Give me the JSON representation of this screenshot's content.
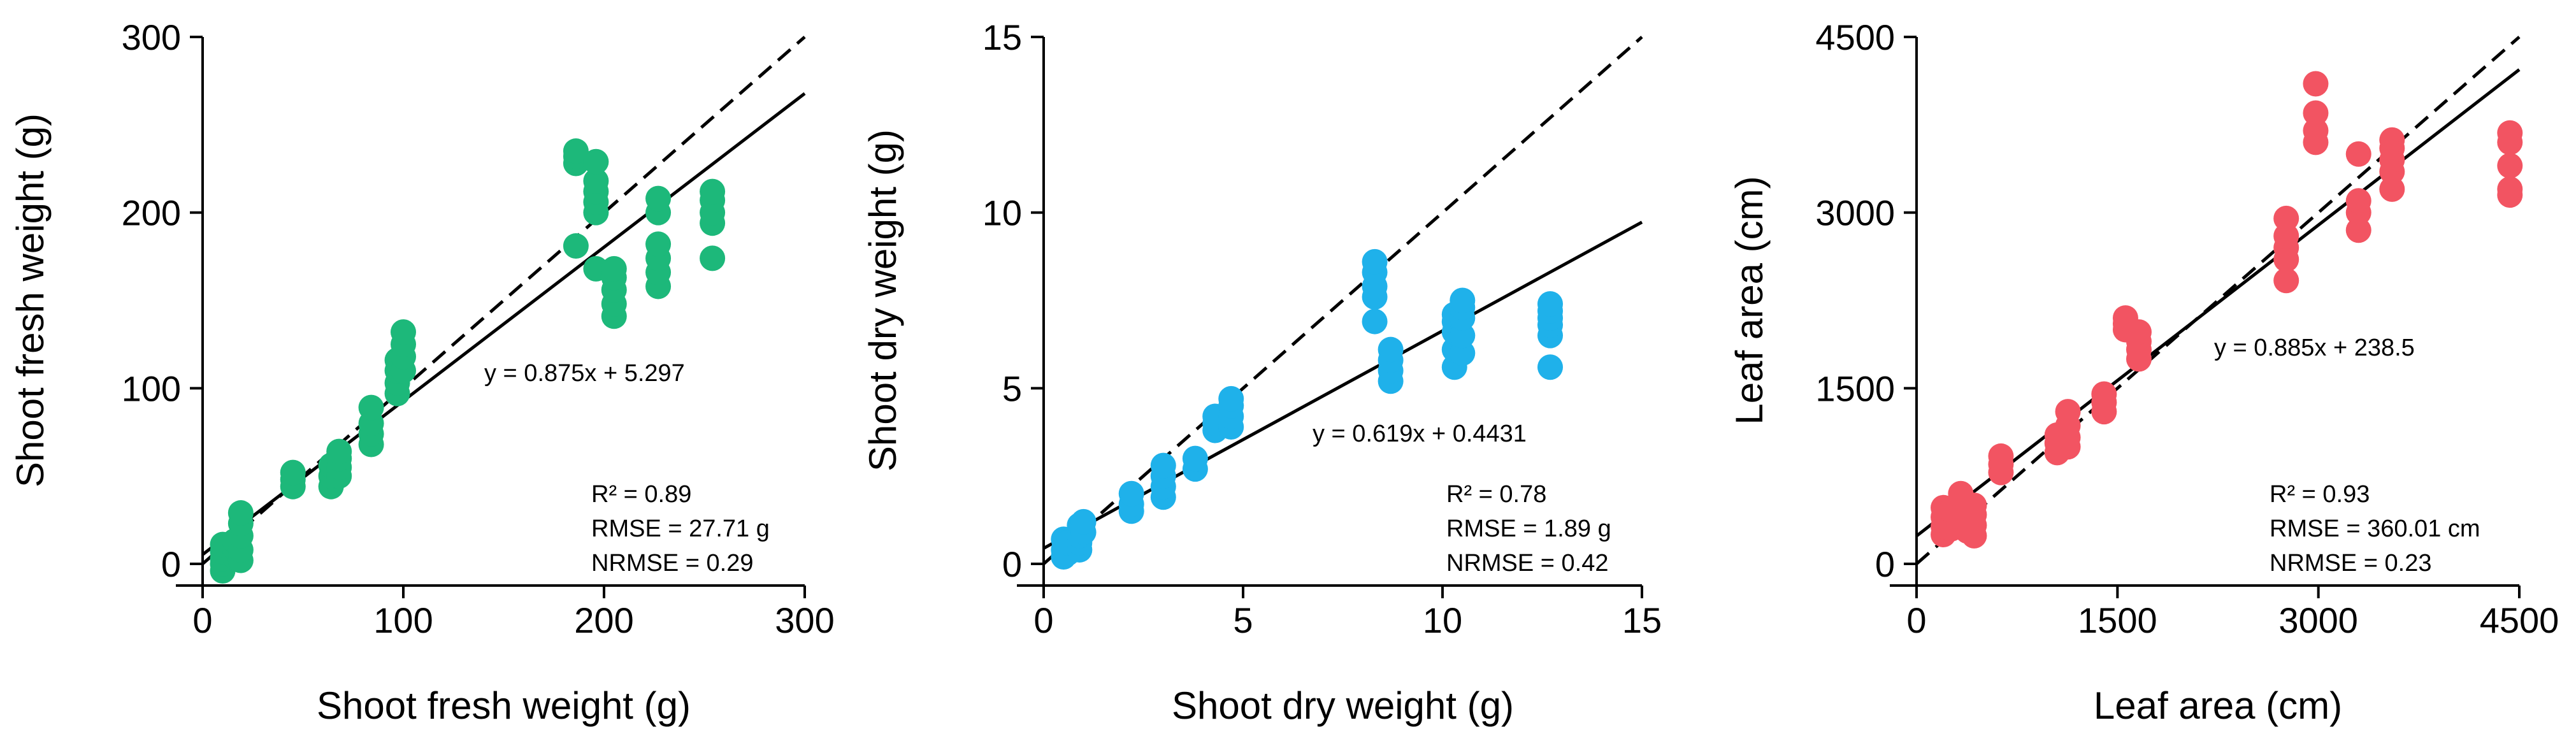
{
  "chart_data": [
    {
      "type": "scatter",
      "color": "#1db87a",
      "xlabel": "Shoot fresh weight (g)",
      "ylabel": "Shoot fresh weight (g)",
      "xlim": [
        0,
        300
      ],
      "ylim": [
        0,
        300
      ],
      "xticks": [
        0,
        100,
        200,
        300
      ],
      "yticks": [
        0,
        100,
        200,
        300
      ],
      "equation": "y = 0.875x + 5.297",
      "fit": {
        "slope": 0.875,
        "intercept": 5.297
      },
      "one_to_one": true,
      "stats": [
        "R² = 0.89",
        "RMSE = 27.71 g",
        "NRMSE = 0.29"
      ],
      "points": [
        [
          10,
          -4
        ],
        [
          10,
          0
        ],
        [
          10,
          3
        ],
        [
          10,
          7
        ],
        [
          10,
          11
        ],
        [
          16,
          4
        ],
        [
          16,
          9
        ],
        [
          16,
          13
        ],
        [
          19,
          2
        ],
        [
          19,
          8
        ],
        [
          19,
          16
        ],
        [
          19,
          23
        ],
        [
          19,
          29
        ],
        [
          45,
          44
        ],
        [
          45,
          48
        ],
        [
          45,
          52
        ],
        [
          64,
          44
        ],
        [
          64,
          50
        ],
        [
          64,
          56
        ],
        [
          68,
          50
        ],
        [
          68,
          55
        ],
        [
          68,
          60
        ],
        [
          68,
          64
        ],
        [
          84,
          68
        ],
        [
          84,
          74
        ],
        [
          84,
          80
        ],
        [
          84,
          89
        ],
        [
          97,
          97
        ],
        [
          97,
          103
        ],
        [
          97,
          110
        ],
        [
          97,
          116
        ],
        [
          100,
          110
        ],
        [
          100,
          118
        ],
        [
          100,
          125
        ],
        [
          100,
          132
        ],
        [
          186,
          181
        ],
        [
          186,
          228
        ],
        [
          186,
          232
        ],
        [
          186,
          235
        ],
        [
          196,
          168
        ],
        [
          196,
          200
        ],
        [
          196,
          206
        ],
        [
          196,
          212
        ],
        [
          196,
          218
        ],
        [
          196,
          229
        ],
        [
          205,
          141
        ],
        [
          205,
          148
        ],
        [
          205,
          156
        ],
        [
          205,
          163
        ],
        [
          205,
          168
        ],
        [
          227,
          158
        ],
        [
          227,
          166
        ],
        [
          227,
          174
        ],
        [
          227,
          182
        ],
        [
          227,
          200
        ],
        [
          227,
          208
        ],
        [
          254,
          174
        ],
        [
          254,
          194
        ],
        [
          254,
          200
        ],
        [
          254,
          207
        ],
        [
          254,
          212
        ]
      ]
    },
    {
      "type": "scatter",
      "color": "#1fb1ea",
      "xlabel": "Shoot dry weight (g)",
      "ylabel": "Shoot dry weight (g)",
      "xlim": [
        0,
        15
      ],
      "ylim": [
        0,
        15
      ],
      "xticks": [
        0,
        5,
        10,
        15
      ],
      "yticks": [
        0,
        5,
        10,
        15
      ],
      "equation": "y = 0.619x + 0.4431",
      "fit": {
        "slope": 0.619,
        "intercept": 0.4431
      },
      "one_to_one": true,
      "stats": [
        "R² = 0.78",
        "RMSE = 1.89 g",
        "NRMSE = 0.42"
      ],
      "points": [
        [
          0.5,
          0.2
        ],
        [
          0.5,
          0.4
        ],
        [
          0.5,
          0.7
        ],
        [
          0.6,
          0.3
        ],
        [
          0.6,
          0.6
        ],
        [
          0.9,
          0.4
        ],
        [
          0.9,
          0.6
        ],
        [
          0.9,
          0.8
        ],
        [
          0.9,
          1.1
        ],
        [
          1.0,
          0.9
        ],
        [
          1.0,
          1.2
        ],
        [
          2.2,
          1.5
        ],
        [
          2.2,
          1.7
        ],
        [
          2.2,
          2.0
        ],
        [
          3.0,
          1.9
        ],
        [
          3.0,
          2.2
        ],
        [
          3.0,
          2.5
        ],
        [
          3.0,
          2.8
        ],
        [
          3.8,
          2.7
        ],
        [
          3.8,
          3.0
        ],
        [
          4.3,
          3.8
        ],
        [
          4.3,
          4.0
        ],
        [
          4.3,
          4.2
        ],
        [
          4.7,
          3.9
        ],
        [
          4.7,
          4.2
        ],
        [
          4.7,
          4.5
        ],
        [
          4.7,
          4.7
        ],
        [
          8.3,
          6.9
        ],
        [
          8.3,
          7.6
        ],
        [
          8.3,
          7.9
        ],
        [
          8.3,
          8.3
        ],
        [
          8.3,
          8.6
        ],
        [
          8.7,
          5.2
        ],
        [
          8.7,
          5.5
        ],
        [
          8.7,
          5.8
        ],
        [
          8.7,
          6.1
        ],
        [
          10.3,
          5.6
        ],
        [
          10.3,
          6.1
        ],
        [
          10.3,
          6.6
        ],
        [
          10.3,
          6.9
        ],
        [
          10.3,
          7.1
        ],
        [
          10.5,
          6.0
        ],
        [
          10.5,
          6.5
        ],
        [
          10.5,
          7.0
        ],
        [
          10.5,
          7.3
        ],
        [
          10.5,
          7.5
        ],
        [
          12.7,
          5.6
        ],
        [
          12.7,
          6.5
        ],
        [
          12.7,
          6.8
        ],
        [
          12.7,
          7.0
        ],
        [
          12.7,
          7.2
        ],
        [
          12.7,
          7.4
        ]
      ]
    },
    {
      "type": "scatter",
      "color": "#f25462",
      "xlabel": "Leaf area (cm)",
      "ylabel": "Leaf area (cm)",
      "xlim": [
        0,
        4500
      ],
      "ylim": [
        0,
        4500
      ],
      "xticks": [
        0,
        1500,
        3000,
        4500
      ],
      "yticks": [
        0,
        1500,
        3000,
        4500
      ],
      "equation": "y = 0.885x + 238.5",
      "fit": {
        "slope": 0.885,
        "intercept": 238.5
      },
      "one_to_one": true,
      "stats": [
        "R² = 0.93",
        "RMSE = 360.01 cm",
        "NRMSE = 0.23"
      ],
      "points": [
        [
          200,
          250
        ],
        [
          200,
          320
        ],
        [
          200,
          400
        ],
        [
          200,
          480
        ],
        [
          260,
          300
        ],
        [
          260,
          380
        ],
        [
          260,
          460
        ],
        [
          330,
          330
        ],
        [
          330,
          420
        ],
        [
          330,
          520
        ],
        [
          330,
          600
        ],
        [
          380,
          280
        ],
        [
          380,
          360
        ],
        [
          380,
          450
        ],
        [
          430,
          240
        ],
        [
          430,
          330
        ],
        [
          430,
          420
        ],
        [
          430,
          500
        ],
        [
          630,
          780
        ],
        [
          630,
          850
        ],
        [
          630,
          920
        ],
        [
          1050,
          950
        ],
        [
          1050,
          1030
        ],
        [
          1050,
          1100
        ],
        [
          1130,
          1000
        ],
        [
          1130,
          1080
        ],
        [
          1130,
          1180
        ],
        [
          1130,
          1300
        ],
        [
          1400,
          1300
        ],
        [
          1400,
          1380
        ],
        [
          1400,
          1450
        ],
        [
          1560,
          2000
        ],
        [
          1560,
          2050
        ],
        [
          1560,
          2100
        ],
        [
          1660,
          1750
        ],
        [
          1660,
          1830
        ],
        [
          1660,
          1900
        ],
        [
          1660,
          1980
        ],
        [
          2760,
          2420
        ],
        [
          2760,
          2600
        ],
        [
          2760,
          2700
        ],
        [
          2760,
          2800
        ],
        [
          2760,
          2950
        ],
        [
          2980,
          3600
        ],
        [
          2980,
          3700
        ],
        [
          2980,
          3850
        ],
        [
          2980,
          4100
        ],
        [
          3300,
          2850
        ],
        [
          3300,
          3000
        ],
        [
          3300,
          3100
        ],
        [
          3300,
          3500
        ],
        [
          3550,
          3200
        ],
        [
          3550,
          3350
        ],
        [
          3550,
          3450
        ],
        [
          3550,
          3550
        ],
        [
          3550,
          3620
        ],
        [
          4430,
          3150
        ],
        [
          4430,
          3200
        ],
        [
          4430,
          3400
        ],
        [
          4430,
          3600
        ],
        [
          4430,
          3680
        ]
      ]
    }
  ]
}
